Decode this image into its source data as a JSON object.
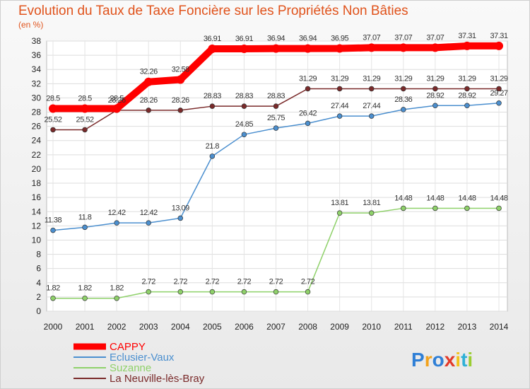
{
  "chart_data": {
    "type": "line",
    "title": "Evolution du Taux de Taxe Foncière sur les Propriétés Non Bâties",
    "subtitle": "(en %)",
    "xlabel": "",
    "ylabel": "",
    "ylim": [
      0,
      38
    ],
    "ystep": 2,
    "grid": true,
    "legend_position": "bottom-left",
    "x": [
      "2000",
      "2001",
      "2002",
      "2003",
      "2004",
      "2005",
      "2006",
      "2007",
      "2008",
      "2009",
      "2010",
      "2011",
      "2012",
      "2013",
      "2014"
    ],
    "series": [
      {
        "name": "CAPPY",
        "color": "#ff0000",
        "values": [
          28.5,
          28.5,
          28.5,
          32.26,
          32.58,
          36.91,
          36.91,
          36.94,
          36.94,
          36.95,
          37.07,
          37.07,
          37.07,
          37.31,
          37.31
        ]
      },
      {
        "name": "Eclusier-Vaux",
        "color": "#4b8fcf",
        "values": [
          11.38,
          11.8,
          12.42,
          12.42,
          13.09,
          21.8,
          24.85,
          25.75,
          26.42,
          27.44,
          27.44,
          28.36,
          28.92,
          28.92,
          29.27
        ]
      },
      {
        "name": "Suzanne",
        "color": "#8fd16a",
        "values": [
          1.82,
          1.82,
          1.82,
          2.72,
          2.72,
          2.72,
          2.72,
          2.72,
          2.72,
          13.81,
          13.81,
          14.48,
          14.48,
          14.48,
          14.48
        ]
      },
      {
        "name": "La Neuville-lès-Bray",
        "color": "#7a2a2a",
        "values": [
          25.52,
          25.52,
          28.26,
          28.26,
          28.26,
          28.83,
          28.83,
          28.83,
          31.29,
          31.29,
          31.29,
          31.29,
          31.29,
          31.29,
          31.29
        ]
      }
    ]
  },
  "brand": {
    "letters": [
      "P",
      "r",
      "o",
      "x",
      "i",
      "t",
      "i"
    ],
    "colors": [
      "#2f7fd6",
      "#f2a21c",
      "#2f7fd6",
      "#e23a2a",
      "#f2c21c",
      "#2fb0d6",
      "#9acd32"
    ]
  }
}
